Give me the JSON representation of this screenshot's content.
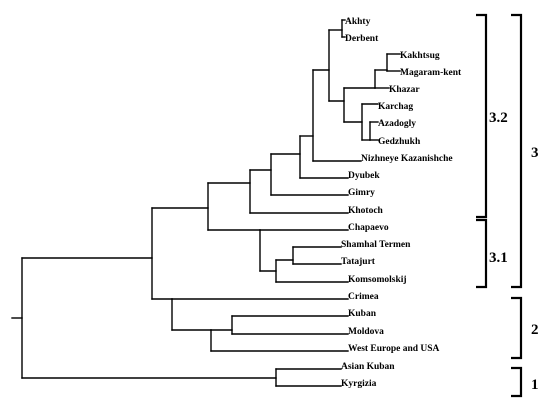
{
  "leaves": [
    "Akhty",
    "Derbent",
    "Kakhtsug",
    "Magaram-kent",
    "Khazar",
    "Karchag",
    "Azadogly",
    "Gedzhukh",
    "Nizhneye Kazanishche",
    "Dyubek",
    "Gimry",
    "Khotoch",
    "Chapaevo",
    "Shamhal Termen",
    "Tatajurt",
    "Komsomolskij",
    "Crimea",
    "Kuban",
    "Moldova",
    "West Europe and USA",
    "Asian Kuban",
    "Kyrgizia"
  ],
  "groups": [
    {
      "label": "3.2",
      "first": "Akhty",
      "last": "Khotoch"
    },
    {
      "label": "3.1",
      "first": "Chapaevo",
      "last": "Komsomolskij"
    },
    {
      "label": "3",
      "first": "Akhty",
      "last": "Komsomolskij"
    },
    {
      "label": "2",
      "first": "Crimea",
      "last": "West Europe and USA"
    },
    {
      "label": "1",
      "first": "Asian Kuban",
      "last": "Kyrgizia"
    }
  ]
}
